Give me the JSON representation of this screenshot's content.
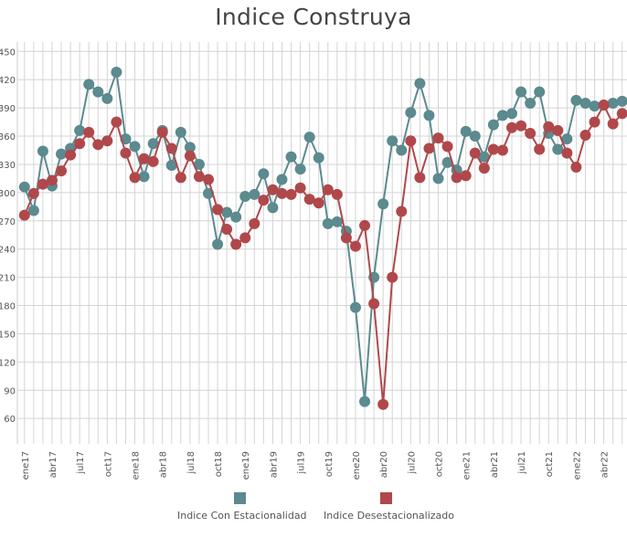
{
  "chart_data": {
    "type": "line",
    "title": "Indice Construya",
    "xlabel": "",
    "ylabel": "",
    "ylim": [
      33,
      460
    ],
    "yticks": [
      60,
      90,
      120,
      150,
      180,
      210,
      240,
      270,
      300,
      330,
      360,
      390,
      420,
      450
    ],
    "grid": true,
    "legend_position": "bottom",
    "x_tick_labels": [
      "ene17",
      "abr17",
      "jul17",
      "oct17",
      "ene18",
      "abr18",
      "jul18",
      "oct18",
      "ene19",
      "abr19",
      "jul19",
      "oct19",
      "ene20",
      "abr20",
      "jul20",
      "oct20",
      "ene21",
      "abr21",
      "jul21",
      "oct21",
      "ene22",
      "abr22"
    ],
    "x": [
      "2017-01",
      "2017-02",
      "2017-03",
      "2017-04",
      "2017-05",
      "2017-06",
      "2017-07",
      "2017-08",
      "2017-09",
      "2017-10",
      "2017-11",
      "2017-12",
      "2018-01",
      "2018-02",
      "2018-03",
      "2018-04",
      "2018-05",
      "2018-06",
      "2018-07",
      "2018-08",
      "2018-09",
      "2018-10",
      "2018-11",
      "2018-12",
      "2019-01",
      "2019-02",
      "2019-03",
      "2019-04",
      "2019-05",
      "2019-06",
      "2019-07",
      "2019-08",
      "2019-09",
      "2019-10",
      "2019-11",
      "2019-12",
      "2020-01",
      "2020-02",
      "2020-03",
      "2020-04",
      "2020-05",
      "2020-06",
      "2020-07",
      "2020-08",
      "2020-09",
      "2020-10",
      "2020-11",
      "2020-12",
      "2021-01",
      "2021-02",
      "2021-03",
      "2021-04",
      "2021-05",
      "2021-06",
      "2021-07",
      "2021-08",
      "2021-09",
      "2021-10",
      "2021-11",
      "2021-12",
      "2022-01",
      "2022-02",
      "2022-03",
      "2022-04",
      "2022-05",
      "2022-06"
    ],
    "series": [
      {
        "name": "Indice Con Estacionalidad",
        "color": "#5b8a8f",
        "values": [
          306,
          281,
          344,
          307,
          341,
          347,
          366,
          415,
          407,
          400,
          428,
          357,
          349,
          317,
          352,
          366,
          329,
          364,
          348,
          330,
          299,
          245,
          279,
          274,
          296,
          298,
          320,
          284,
          314,
          338,
          325,
          359,
          337,
          267,
          269,
          259,
          178,
          78,
          210,
          288,
          355,
          345,
          385,
          416,
          382,
          315,
          332,
          324,
          365,
          360,
          338,
          372,
          382,
          384,
          407,
          395,
          407,
          363,
          346,
          357,
          398,
          395,
          392,
          393,
          395,
          397
        ],
        "y_overrides_note": ""
      },
      {
        "name": "Indice Desestacionalizado",
        "color": "#b0484b",
        "values": [
          276,
          299,
          309,
          313,
          323,
          340,
          352,
          364,
          351,
          355,
          375,
          342,
          316,
          336,
          333,
          364,
          347,
          316,
          339,
          317,
          314,
          282,
          261,
          245,
          252,
          267,
          292,
          303,
          299,
          298,
          305,
          293,
          289,
          303,
          298,
          252,
          243,
          265,
          182,
          75,
          210,
          280,
          355,
          316,
          347,
          358,
          349,
          316,
          318,
          342,
          326,
          346,
          345,
          369,
          371,
          363,
          346,
          370,
          366,
          342,
          327,
          361,
          375,
          393,
          373,
          384
        ]
      }
    ]
  },
  "legend": {
    "items": [
      {
        "label": "Indice Con Estacionalidad",
        "color": "#5b8a8f"
      },
      {
        "label": "Indice Desestacionalizado",
        "color": "#b0484b"
      }
    ]
  }
}
